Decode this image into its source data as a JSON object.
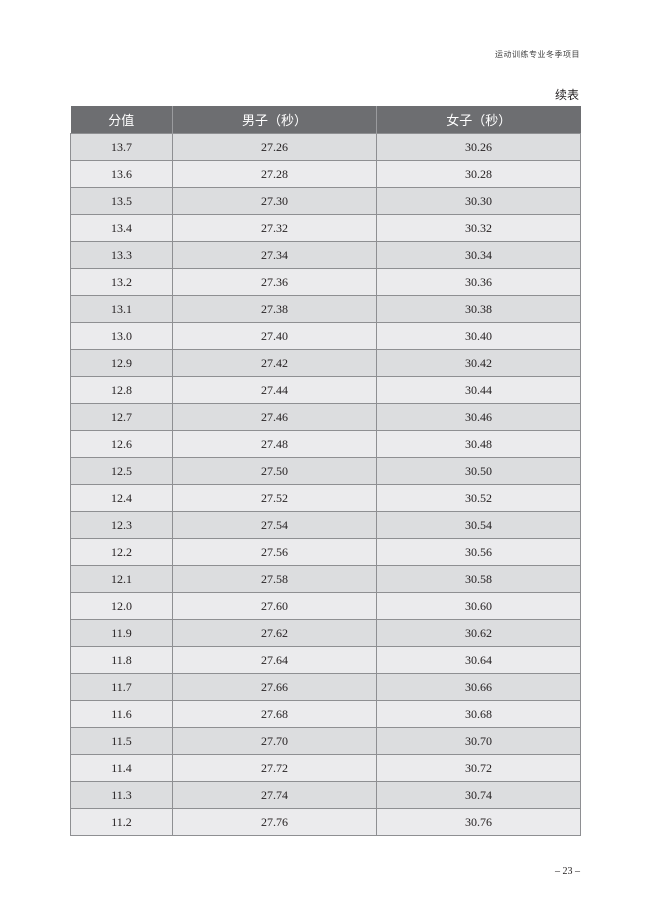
{
  "header": {
    "running_title": "运动训练专业冬季项目"
  },
  "table": {
    "continued_label": "续表",
    "columns": [
      "分值",
      "男子（秒）",
      "女子（秒）"
    ],
    "rows": [
      [
        "13.7",
        "27.26",
        "30.26"
      ],
      [
        "13.6",
        "27.28",
        "30.28"
      ],
      [
        "13.5",
        "27.30",
        "30.30"
      ],
      [
        "13.4",
        "27.32",
        "30.32"
      ],
      [
        "13.3",
        "27.34",
        "30.34"
      ],
      [
        "13.2",
        "27.36",
        "30.36"
      ],
      [
        "13.1",
        "27.38",
        "30.38"
      ],
      [
        "13.0",
        "27.40",
        "30.40"
      ],
      [
        "12.9",
        "27.42",
        "30.42"
      ],
      [
        "12.8",
        "27.44",
        "30.44"
      ],
      [
        "12.7",
        "27.46",
        "30.46"
      ],
      [
        "12.6",
        "27.48",
        "30.48"
      ],
      [
        "12.5",
        "27.50",
        "30.50"
      ],
      [
        "12.4",
        "27.52",
        "30.52"
      ],
      [
        "12.3",
        "27.54",
        "30.54"
      ],
      [
        "12.2",
        "27.56",
        "30.56"
      ],
      [
        "12.1",
        "27.58",
        "30.58"
      ],
      [
        "12.0",
        "27.60",
        "30.60"
      ],
      [
        "11.9",
        "27.62",
        "30.62"
      ],
      [
        "11.8",
        "27.64",
        "30.64"
      ],
      [
        "11.7",
        "27.66",
        "30.66"
      ],
      [
        "11.6",
        "27.68",
        "30.68"
      ],
      [
        "11.5",
        "27.70",
        "30.70"
      ],
      [
        "11.4",
        "27.72",
        "30.72"
      ],
      [
        "11.3",
        "27.74",
        "30.74"
      ],
      [
        "11.2",
        "27.76",
        "30.76"
      ]
    ]
  },
  "footer": {
    "page_number": "– 23 –"
  },
  "colors": {
    "header_bg": "#6d6e71",
    "row_dark": "#dcdddf",
    "row_light": "#ebebed"
  }
}
